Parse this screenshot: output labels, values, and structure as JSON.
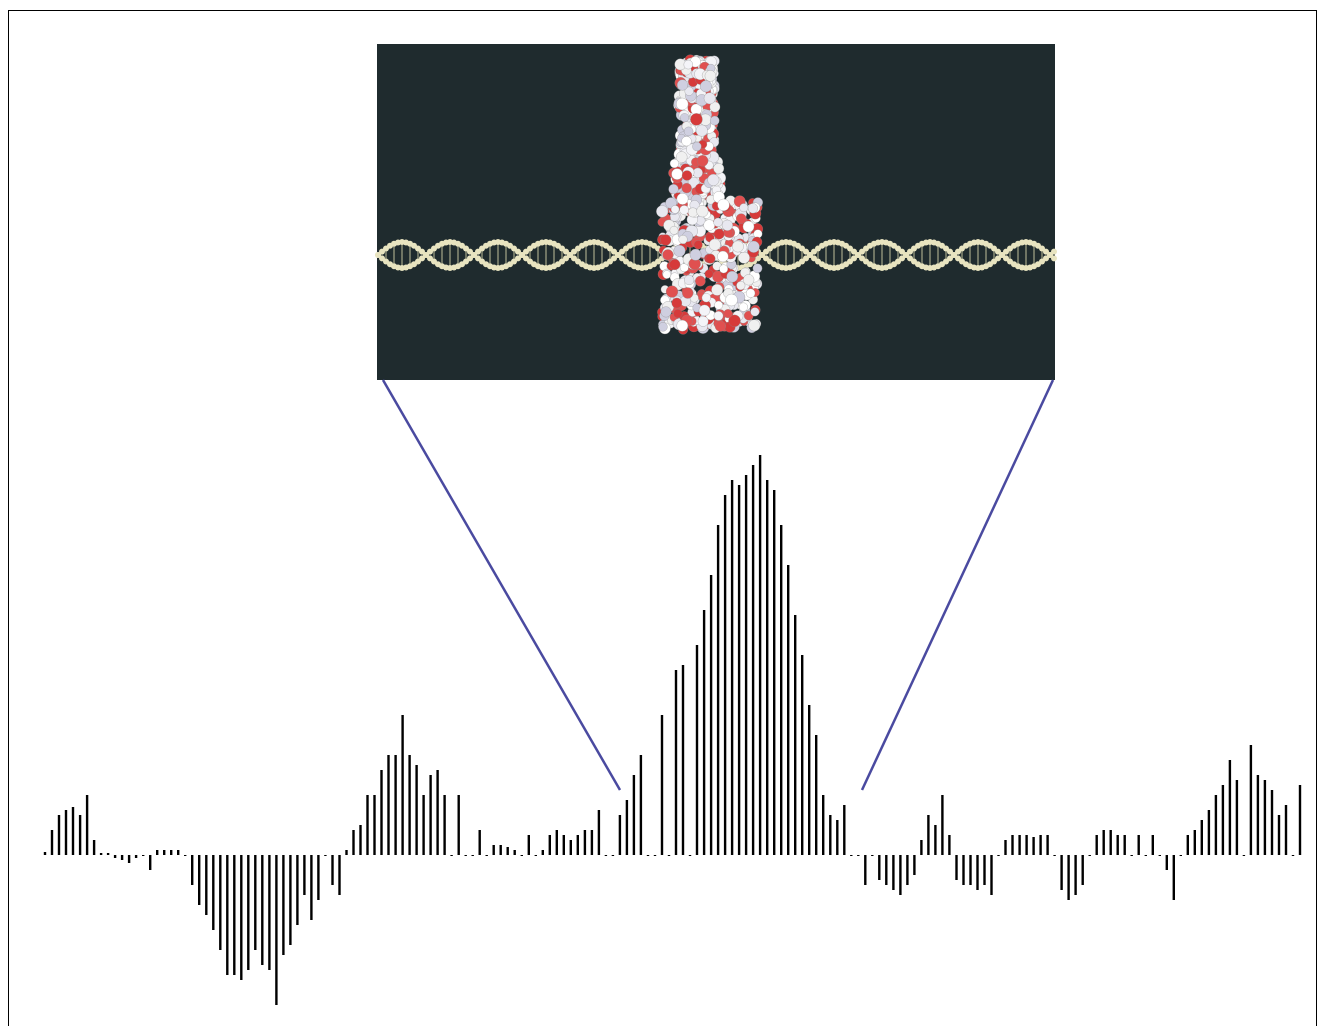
{
  "chart_data": {
    "type": "bar",
    "color": "#000000",
    "ylim": [
      -160,
      410
    ],
    "values": [
      3,
      25,
      40,
      45,
      48,
      40,
      60,
      15,
      2,
      2,
      -3,
      -5,
      -8,
      -3,
      0,
      -15,
      5,
      5,
      5,
      5,
      0,
      -30,
      -50,
      -60,
      -75,
      -95,
      -120,
      -120,
      -125,
      -115,
      -95,
      -110,
      -115,
      -150,
      -100,
      -90,
      -70,
      -40,
      -65,
      -45,
      0,
      -30,
      -40,
      5,
      25,
      30,
      60,
      60,
      85,
      100,
      100,
      140,
      100,
      90,
      60,
      80,
      85,
      60,
      0,
      60,
      0,
      0,
      25,
      0,
      10,
      10,
      8,
      5,
      0,
      20,
      0,
      5,
      20,
      25,
      20,
      15,
      20,
      25,
      25,
      45,
      0,
      0,
      40,
      55,
      80,
      100,
      0,
      0,
      140,
      0,
      185,
      190,
      0,
      210,
      245,
      280,
      330,
      360,
      375,
      370,
      380,
      390,
      400,
      375,
      365,
      330,
      290,
      240,
      200,
      150,
      120,
      60,
      40,
      35,
      50,
      0,
      0,
      -30,
      0,
      -25,
      -30,
      -35,
      -40,
      -30,
      -20,
      15,
      40,
      30,
      60,
      20,
      -25,
      -30,
      -30,
      -35,
      -30,
      -40,
      0,
      15,
      20,
      20,
      20,
      18,
      20,
      20,
      0,
      -35,
      -45,
      -40,
      -30,
      0,
      20,
      25,
      25,
      20,
      20,
      0,
      20,
      0,
      20,
      0,
      -15,
      -45,
      0,
      20,
      25,
      35,
      45,
      60,
      70,
      95,
      75,
      0,
      110,
      80,
      75,
      65,
      40,
      50,
      0,
      70
    ]
  }
}
